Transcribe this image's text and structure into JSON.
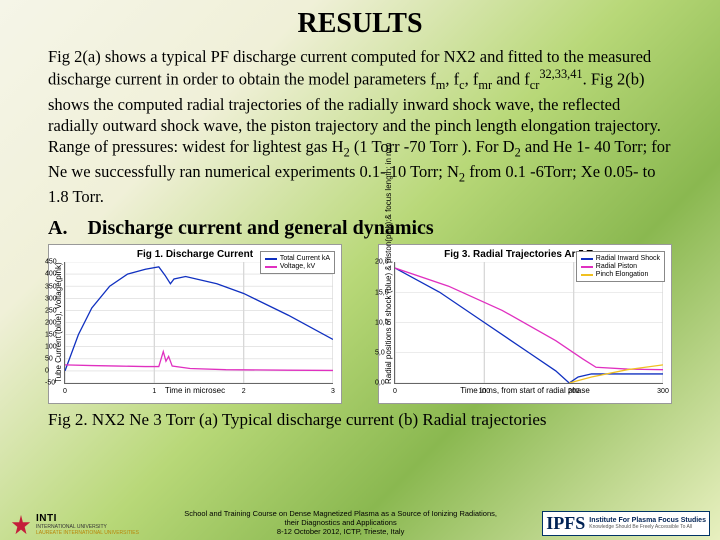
{
  "title": "RESULTS",
  "body_html": "Fig 2(a) shows a typical PF discharge current computed for NX2 and fitted to the measured discharge current in order to obtain the model parameters f<sub>m</sub>, f<sub>c</sub>, f<sub>mr</sub> and f<sub>cr</sub><sup>32,33,41</sup>. Fig 2(b) shows the computed radial trajectories of the radially inward shock wave, the reflected radially outward shock wave, the piston trajectory and the pinch length elongation trajectory.<br>Range of pressures: widest for lightest gas H<sub>2</sub> (1 Torr -70 Torr ). For D<sub>2</sub> and He 1- 40 Torr; for Ne we successfully ran numerical experiments 0.1- 10 Torr; N<sub>2</sub> from 0.1 -6Torr; Xe 0.05- to 1.8 Torr.",
  "section_heading": "A. Discharge current and general dynamics",
  "caption": "Fig 2. NX2 Ne 3 Torr (a) Typical discharge current (b) Radial trajectories",
  "chart1": {
    "title": "Fig 1. Discharge Current",
    "ylabel": "Tube Current (blue), Voltage(pink)",
    "xlabel": "Time in microsec",
    "legend": [
      {
        "label": "Total Current kA",
        "color": "#1030c0"
      },
      {
        "label": "Voltage, kV",
        "color": "#e030c0"
      }
    ],
    "yticks": [
      "-50",
      "0",
      "50",
      "100",
      "150",
      "200",
      "250",
      "300",
      "350",
      "400",
      "450"
    ],
    "xticks": [
      "0",
      "1",
      "2",
      "3"
    ],
    "xlim": [
      0,
      3
    ],
    "ylim": [
      -50,
      450
    ],
    "series": {
      "current": {
        "color": "#1030c0",
        "points": [
          [
            0,
            0
          ],
          [
            0.15,
            150
          ],
          [
            0.3,
            260
          ],
          [
            0.5,
            350
          ],
          [
            0.7,
            400
          ],
          [
            0.9,
            420
          ],
          [
            1.05,
            430
          ],
          [
            1.12,
            395
          ],
          [
            1.18,
            360
          ],
          [
            1.22,
            380
          ],
          [
            1.35,
            390
          ],
          [
            1.7,
            360
          ],
          [
            2.0,
            320
          ],
          [
            2.5,
            230
          ],
          [
            3.0,
            130
          ]
        ]
      },
      "voltage": {
        "color": "#e030c0",
        "points": [
          [
            0,
            25
          ],
          [
            0.3,
            22
          ],
          [
            0.6,
            20
          ],
          [
            0.9,
            18
          ],
          [
            1.05,
            18
          ],
          [
            1.1,
            80
          ],
          [
            1.13,
            40
          ],
          [
            1.16,
            60
          ],
          [
            1.2,
            20
          ],
          [
            1.4,
            10
          ],
          [
            1.8,
            5
          ],
          [
            2.5,
            3
          ],
          [
            3.0,
            2
          ]
        ]
      }
    }
  },
  "chart2": {
    "title": "Fig 3. Radial Trajectories Ar 5 Torr",
    "ylabel": "Radial positions of shock (blue) & piston(pink);& focus length; in mm",
    "xlabel": "Time in ns, from start of radial phase",
    "legend": [
      {
        "label": "Radial Inward Shock",
        "color": "#1030c0"
      },
      {
        "label": "Radial Piston",
        "color": "#e030c0"
      },
      {
        "label": "Pinch Elongation",
        "color": "#f0c020"
      }
    ],
    "yticks": [
      "0,0",
      "5,0",
      "10,0",
      "15,0",
      "20,0"
    ],
    "xticks": [
      "0",
      "100",
      "200",
      "300"
    ],
    "xlim": [
      0,
      300
    ],
    "ylim": [
      0,
      20
    ],
    "series": {
      "shock": {
        "color": "#1030c0",
        "points": [
          [
            0,
            19
          ],
          [
            50,
            15
          ],
          [
            100,
            10
          ],
          [
            150,
            5
          ],
          [
            180,
            2
          ],
          [
            195,
            0
          ],
          [
            205,
            1
          ],
          [
            220,
            1.5
          ],
          [
            260,
            1.5
          ],
          [
            300,
            1.5
          ]
        ]
      },
      "piston": {
        "color": "#e030c0",
        "points": [
          [
            0,
            19
          ],
          [
            60,
            16
          ],
          [
            120,
            12
          ],
          [
            180,
            7
          ],
          [
            210,
            4
          ],
          [
            225,
            2.6
          ],
          [
            260,
            2.3
          ],
          [
            300,
            2.2
          ]
        ]
      },
      "pinch": {
        "color": "#f0c020",
        "points": [
          [
            195,
            0
          ],
          [
            220,
            1
          ],
          [
            260,
            2.2
          ],
          [
            300,
            3
          ]
        ]
      }
    }
  },
  "footer": {
    "center_line1": "School and Training Course on Dense Magnetized Plasma as a Source of Ionizing Radiations,",
    "center_line2": "their Diagnostics and Applications",
    "center_line3": "8-12 October 2012,  ICTP, Trieste, Italy",
    "inti_name": "INTI",
    "inti_sub": "INTERNATIONAL UNIVERSITY",
    "inti_laur": "LAUREATE INTERNATIONAL UNIVERSITIES",
    "ipfs": "IPFS",
    "ipfs_line1": "Institute For Plasma Focus Studies",
    "ipfs_line2": "Knowledge Should Be Freely Accessible To All"
  },
  "colors": {
    "title_color": "#000000",
    "text_color": "#000000"
  }
}
